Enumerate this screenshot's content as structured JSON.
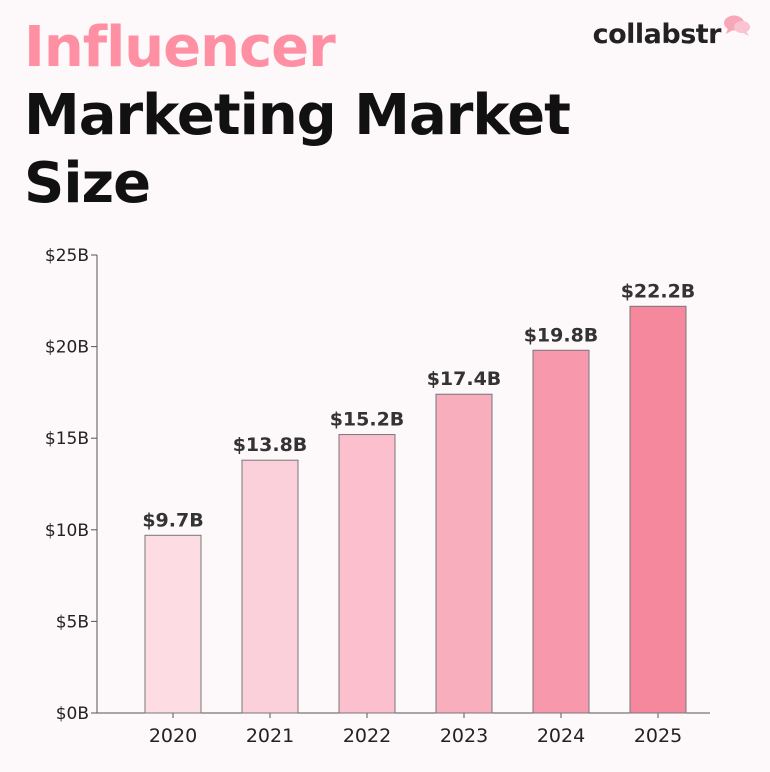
{
  "header": {
    "title_line1": "Influencer",
    "title_line2": "Marketing Market",
    "title_line3": "Size",
    "title_accent_color": "#ff8fa3",
    "title_color": "#111111"
  },
  "brand": {
    "name": "collabstr",
    "icon": "speech-bubbles-icon",
    "icon_color": "#f7a8b8"
  },
  "chart_data": {
    "type": "bar",
    "title": "",
    "xlabel": "",
    "ylabel": "",
    "categories": [
      "2020",
      "2021",
      "2022",
      "2023",
      "2024",
      "2025"
    ],
    "values": [
      9.7,
      13.8,
      15.2,
      17.4,
      19.8,
      22.2
    ],
    "data_labels": [
      "$9.7B",
      "$13.8B",
      "$15.2B",
      "$17.4B",
      "$19.8B",
      "$22.2B"
    ],
    "bar_colors": [
      "#fddde3",
      "#fcd0da",
      "#fbbfcd",
      "#f9aebe",
      "#f898ad",
      "#f6889e"
    ],
    "ylim": [
      0,
      25
    ],
    "yticks": [
      0,
      5,
      10,
      15,
      20,
      25
    ],
    "ytick_labels": [
      "$0B",
      "$5B",
      "$10B",
      "$15B",
      "$20B",
      "$25B"
    ],
    "grid": false,
    "legend": "none"
  }
}
